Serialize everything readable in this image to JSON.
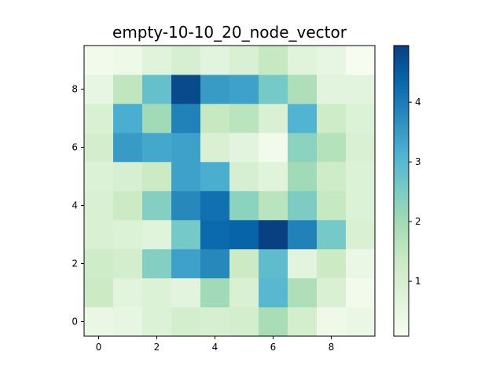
{
  "chart_data": {
    "type": "heatmap",
    "title": "empty-10-10_20_node_vector",
    "xlabel": "",
    "ylabel": "",
    "x_ticks": [
      "0",
      "2",
      "4",
      "6",
      "8"
    ],
    "y_ticks": [
      "0",
      "2",
      "4",
      "6",
      "8"
    ],
    "xlim": [
      -0.5,
      9.5
    ],
    "ylim": [
      -0.5,
      9.5
    ],
    "origin": "lower",
    "colormap": "GnBu",
    "color_min": 0.08,
    "color_max": 4.95,
    "colorbar_ticks": [
      "1",
      "2",
      "3",
      "4"
    ],
    "grid": false,
    "rows": [
      [
        0.4,
        0.5,
        0.8,
        1.1,
        1.0,
        1.1,
        1.9,
        1.1,
        0.3,
        0.4
      ],
      [
        1.3,
        0.6,
        0.8,
        0.6,
        2.0,
        0.9,
        3.0,
        1.8,
        0.9,
        0.2
      ],
      [
        1.2,
        1.1,
        2.4,
        3.4,
        3.8,
        1.3,
        2.9,
        0.6,
        1.3,
        0.4
      ],
      [
        0.9,
        0.8,
        0.7,
        2.6,
        4.3,
        4.4,
        4.95,
        3.9,
        2.6,
        0.9
      ],
      [
        0.9,
        1.3,
        2.4,
        3.8,
        4.2,
        2.3,
        1.6,
        2.5,
        1.4,
        0.8
      ],
      [
        0.8,
        1.0,
        1.3,
        3.4,
        3.2,
        1.0,
        0.7,
        2.0,
        1.2,
        0.8
      ],
      [
        1.1,
        3.5,
        3.3,
        3.4,
        0.9,
        0.6,
        0.2,
        2.3,
        1.7,
        0.9
      ],
      [
        0.9,
        3.2,
        2.0,
        3.9,
        1.4,
        1.6,
        0.9,
        3.1,
        1.2,
        0.8
      ],
      [
        0.5,
        1.5,
        2.8,
        4.8,
        3.5,
        3.4,
        2.6,
        1.8,
        0.6,
        0.6
      ],
      [
        0.2,
        0.3,
        0.7,
        1.0,
        0.6,
        0.9,
        1.4,
        0.7,
        0.5,
        0.1
      ]
    ]
  }
}
